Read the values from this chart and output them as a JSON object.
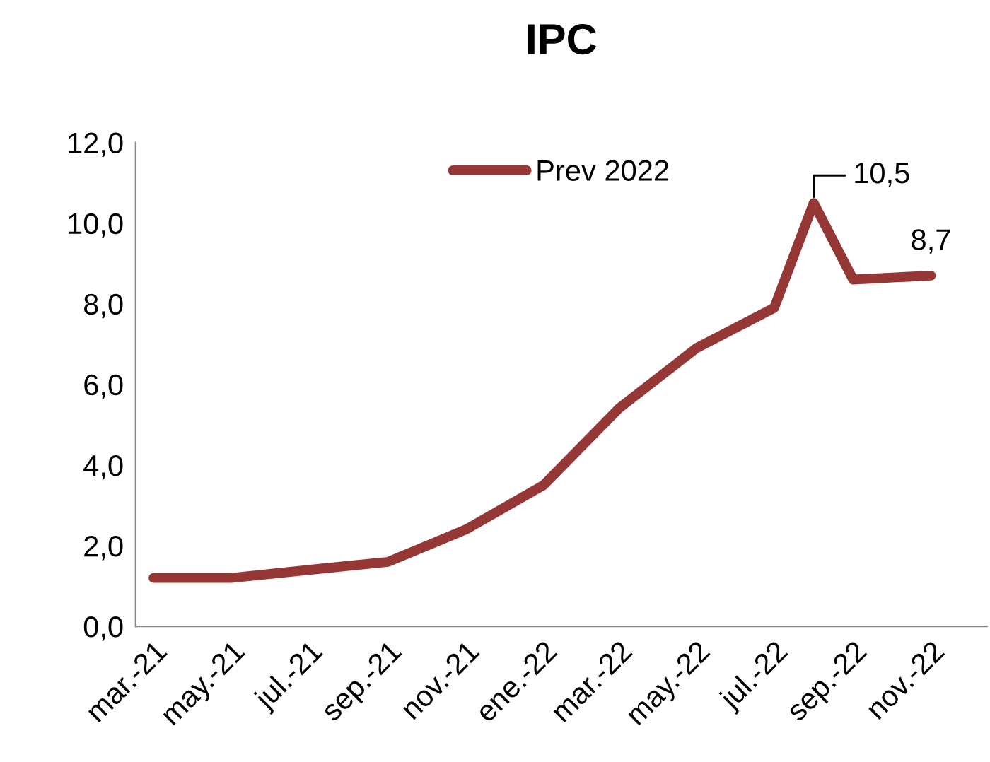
{
  "chart_data": {
    "type": "line",
    "title": "IPC",
    "x": [
      "2021-03",
      "2021-05",
      "2021-07",
      "2021-09",
      "2021-11",
      "2022-01",
      "2022-03",
      "2022-05",
      "2022-07",
      "2022-08",
      "2022-09",
      "2022-11"
    ],
    "series": [
      {
        "name": "Prev 2022",
        "color": "#953735",
        "values": [
          1.2,
          1.2,
          1.4,
          1.6,
          2.4,
          3.5,
          5.4,
          6.9,
          7.9,
          10.5,
          8.6,
          8.7
        ],
        "value_labels": [
          null,
          null,
          null,
          null,
          null,
          null,
          null,
          null,
          null,
          "10,5",
          null,
          "8,7"
        ]
      }
    ],
    "xlim": [
      "2021-02-15",
      "2022-12-15"
    ],
    "xticks": [
      {
        "value": "2021-03",
        "label": "mar.-21"
      },
      {
        "value": "2021-05",
        "label": "may.-21"
      },
      {
        "value": "2021-07",
        "label": "jul.-21"
      },
      {
        "value": "2021-09",
        "label": "sep.-21"
      },
      {
        "value": "2021-11",
        "label": "nov.-21"
      },
      {
        "value": "2022-01",
        "label": "ene.-22"
      },
      {
        "value": "2022-03",
        "label": "mar.-22"
      },
      {
        "value": "2022-05",
        "label": "may.-22"
      },
      {
        "value": "2022-07",
        "label": "jul.-22"
      },
      {
        "value": "2022-09",
        "label": "sep.-22"
      },
      {
        "value": "2022-11",
        "label": "nov.-22"
      }
    ],
    "ylim": [
      0,
      12
    ],
    "yticks": [
      {
        "value": 0,
        "label": "0,0"
      },
      {
        "value": 2,
        "label": "2,0"
      },
      {
        "value": 4,
        "label": "4,0"
      },
      {
        "value": 6,
        "label": "6,0"
      },
      {
        "value": 8,
        "label": "8,0"
      },
      {
        "value": 10,
        "label": "10,0"
      },
      {
        "value": 12,
        "label": "12,0"
      }
    ],
    "grid": false,
    "legend": "top",
    "marker": "none",
    "line_style": "solid"
  }
}
